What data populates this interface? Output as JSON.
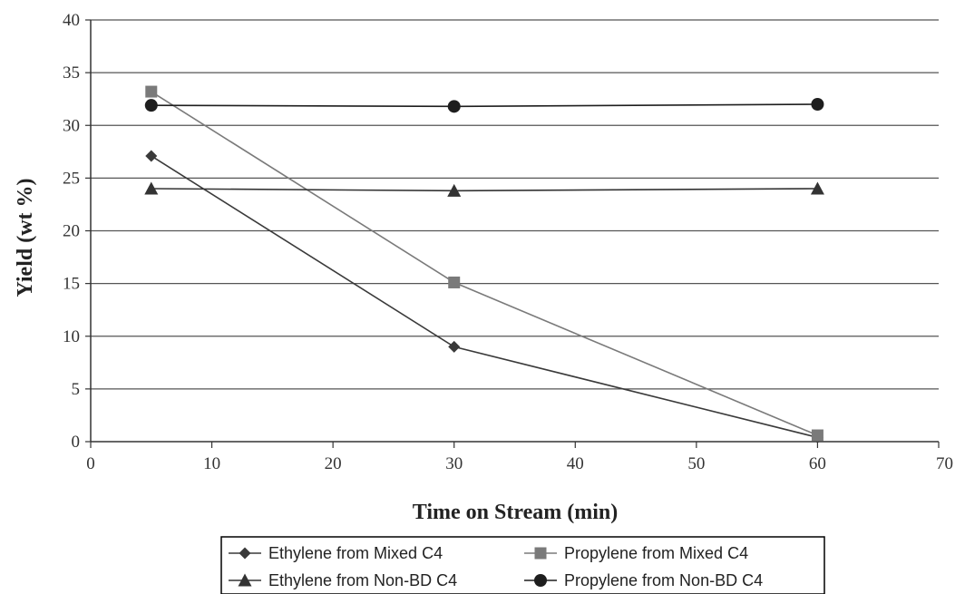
{
  "chart_data": {
    "type": "line",
    "xlabel": "Time on Stream (min)",
    "ylabel": "Yield (wt %)",
    "xlim": [
      0,
      70
    ],
    "ylim": [
      0,
      40
    ],
    "xticks": [
      0,
      10,
      20,
      30,
      40,
      50,
      60,
      70
    ],
    "yticks": [
      0,
      5,
      10,
      15,
      20,
      25,
      30,
      35,
      40
    ],
    "grid": "horizontal",
    "legend_position": "bottom",
    "series": [
      {
        "name": "Ethylene from Mixed C4",
        "marker": "diamond",
        "color": "#3a3a3a",
        "x": [
          5,
          30,
          60
        ],
        "y": [
          27.1,
          9.0,
          0.4
        ]
      },
      {
        "name": "Propylene from Mixed C4",
        "marker": "square",
        "color": "#7a7a7a",
        "x": [
          5,
          30,
          60
        ],
        "y": [
          33.2,
          15.1,
          0.6
        ]
      },
      {
        "name": "Ethylene from Non-BD C4",
        "marker": "triangle",
        "color": "#333333",
        "x": [
          5,
          30,
          60
        ],
        "y": [
          24.0,
          23.8,
          24.0
        ]
      },
      {
        "name": "Propylene from Non-BD C4",
        "marker": "circle",
        "color": "#1e1e1e",
        "x": [
          5,
          30,
          60
        ],
        "y": [
          31.9,
          31.8,
          32.0
        ]
      }
    ]
  }
}
